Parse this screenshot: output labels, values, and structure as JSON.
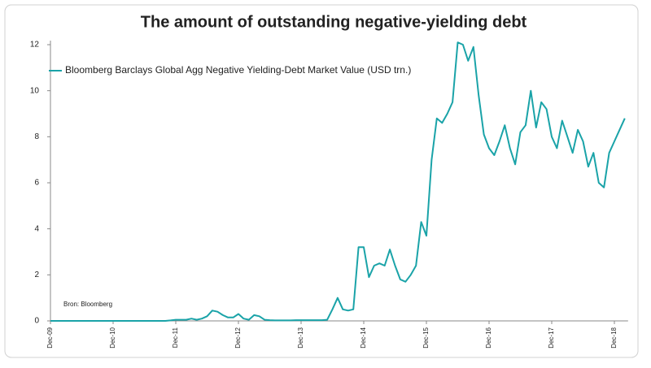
{
  "chart_data": {
    "type": "line",
    "title": "The amount of outstanding negative-yielding debt",
    "note": "Bron: Bloomberg",
    "x": [
      "Dec-09",
      "Jan-10",
      "Feb-10",
      "Mar-10",
      "Apr-10",
      "May-10",
      "Jun-10",
      "Jul-10",
      "Aug-10",
      "Sep-10",
      "Oct-10",
      "Nov-10",
      "Dec-10",
      "Jan-11",
      "Feb-11",
      "Mar-11",
      "Apr-11",
      "May-11",
      "Jun-11",
      "Jul-11",
      "Aug-11",
      "Sep-11",
      "Oct-11",
      "Nov-11",
      "Dec-11",
      "Jan-12",
      "Feb-12",
      "Mar-12",
      "Apr-12",
      "May-12",
      "Jun-12",
      "Jul-12",
      "Aug-12",
      "Sep-12",
      "Oct-12",
      "Nov-12",
      "Dec-12",
      "Jan-13",
      "Feb-13",
      "Mar-13",
      "Apr-13",
      "May-13",
      "Jun-13",
      "Jul-13",
      "Aug-13",
      "Sep-13",
      "Oct-13",
      "Nov-13",
      "Dec-13",
      "Jan-14",
      "Feb-14",
      "Mar-14",
      "Apr-14",
      "May-14",
      "Jun-14",
      "Jul-14",
      "Aug-14",
      "Sep-14",
      "Oct-14",
      "Nov-14",
      "Dec-14",
      "Jan-15",
      "Feb-15",
      "Mar-15",
      "Apr-15",
      "May-15",
      "Jun-15",
      "Jul-15",
      "Aug-15",
      "Sep-15",
      "Oct-15",
      "Nov-15",
      "Dec-15",
      "Jan-16",
      "Feb-16",
      "Mar-16",
      "Apr-16",
      "May-16",
      "Jun-16",
      "Jul-16",
      "Aug-16",
      "Sep-16",
      "Oct-16",
      "Nov-16",
      "Dec-16",
      "Jan-17",
      "Feb-17",
      "Mar-17",
      "Apr-17",
      "May-17",
      "Jun-17",
      "Jul-17",
      "Aug-17",
      "Sep-17",
      "Oct-17",
      "Nov-17",
      "Dec-17",
      "Jan-18",
      "Feb-18",
      "Mar-18",
      "Apr-18",
      "May-18",
      "Jun-18",
      "Jul-18",
      "Aug-18",
      "Sep-18",
      "Oct-18",
      "Nov-18",
      "Dec-18",
      "Jan-19",
      "Feb-19"
    ],
    "series": [
      {
        "name": "Bloomberg Barclays Global Agg Negative Yielding-Debt Market Value (USD trn.)",
        "color": "#1aa3a8",
        "values": [
          0,
          0,
          0,
          0,
          0,
          0,
          0,
          0,
          0,
          0,
          0,
          0,
          0,
          0,
          0,
          0,
          0,
          0,
          0,
          0,
          0,
          0,
          0,
          0.02,
          0.05,
          0.05,
          0.05,
          0.1,
          0.05,
          0.1,
          0.2,
          0.45,
          0.4,
          0.25,
          0.15,
          0.15,
          0.3,
          0.1,
          0.05,
          0.25,
          0.2,
          0.05,
          0.03,
          0.02,
          0.02,
          0.02,
          0.02,
          0.03,
          0.03,
          0.03,
          0.03,
          0.03,
          0.03,
          0.05,
          0.5,
          1.0,
          0.5,
          0.45,
          0.5,
          3.2,
          3.2,
          1.9,
          2.4,
          2.5,
          2.4,
          3.1,
          2.4,
          1.8,
          1.7,
          2.0,
          2.4,
          4.3,
          3.7,
          7.0,
          8.8,
          8.6,
          9.0,
          9.5,
          12.1,
          12.0,
          11.3,
          11.9,
          9.8,
          8.1,
          7.5,
          7.2,
          7.8,
          8.5,
          7.5,
          6.8,
          8.2,
          8.5,
          10.0,
          8.4,
          9.5,
          9.2,
          8.0,
          7.5,
          8.7,
          8.0,
          7.3,
          8.3,
          7.8,
          6.7,
          7.3,
          6.0,
          5.8,
          7.3,
          7.8,
          8.3,
          8.8
        ]
      }
    ],
    "xticks": [
      "Dec-09",
      "Dec-10",
      "Dec-11",
      "Dec-12",
      "Dec-13",
      "Dec-14",
      "Dec-15",
      "Dec-16",
      "Dec-17",
      "Dec-18"
    ],
    "ylim": [
      0,
      12
    ],
    "yticks": [
      0,
      2,
      4,
      6,
      8,
      10,
      12
    ],
    "legend": "top-left"
  }
}
